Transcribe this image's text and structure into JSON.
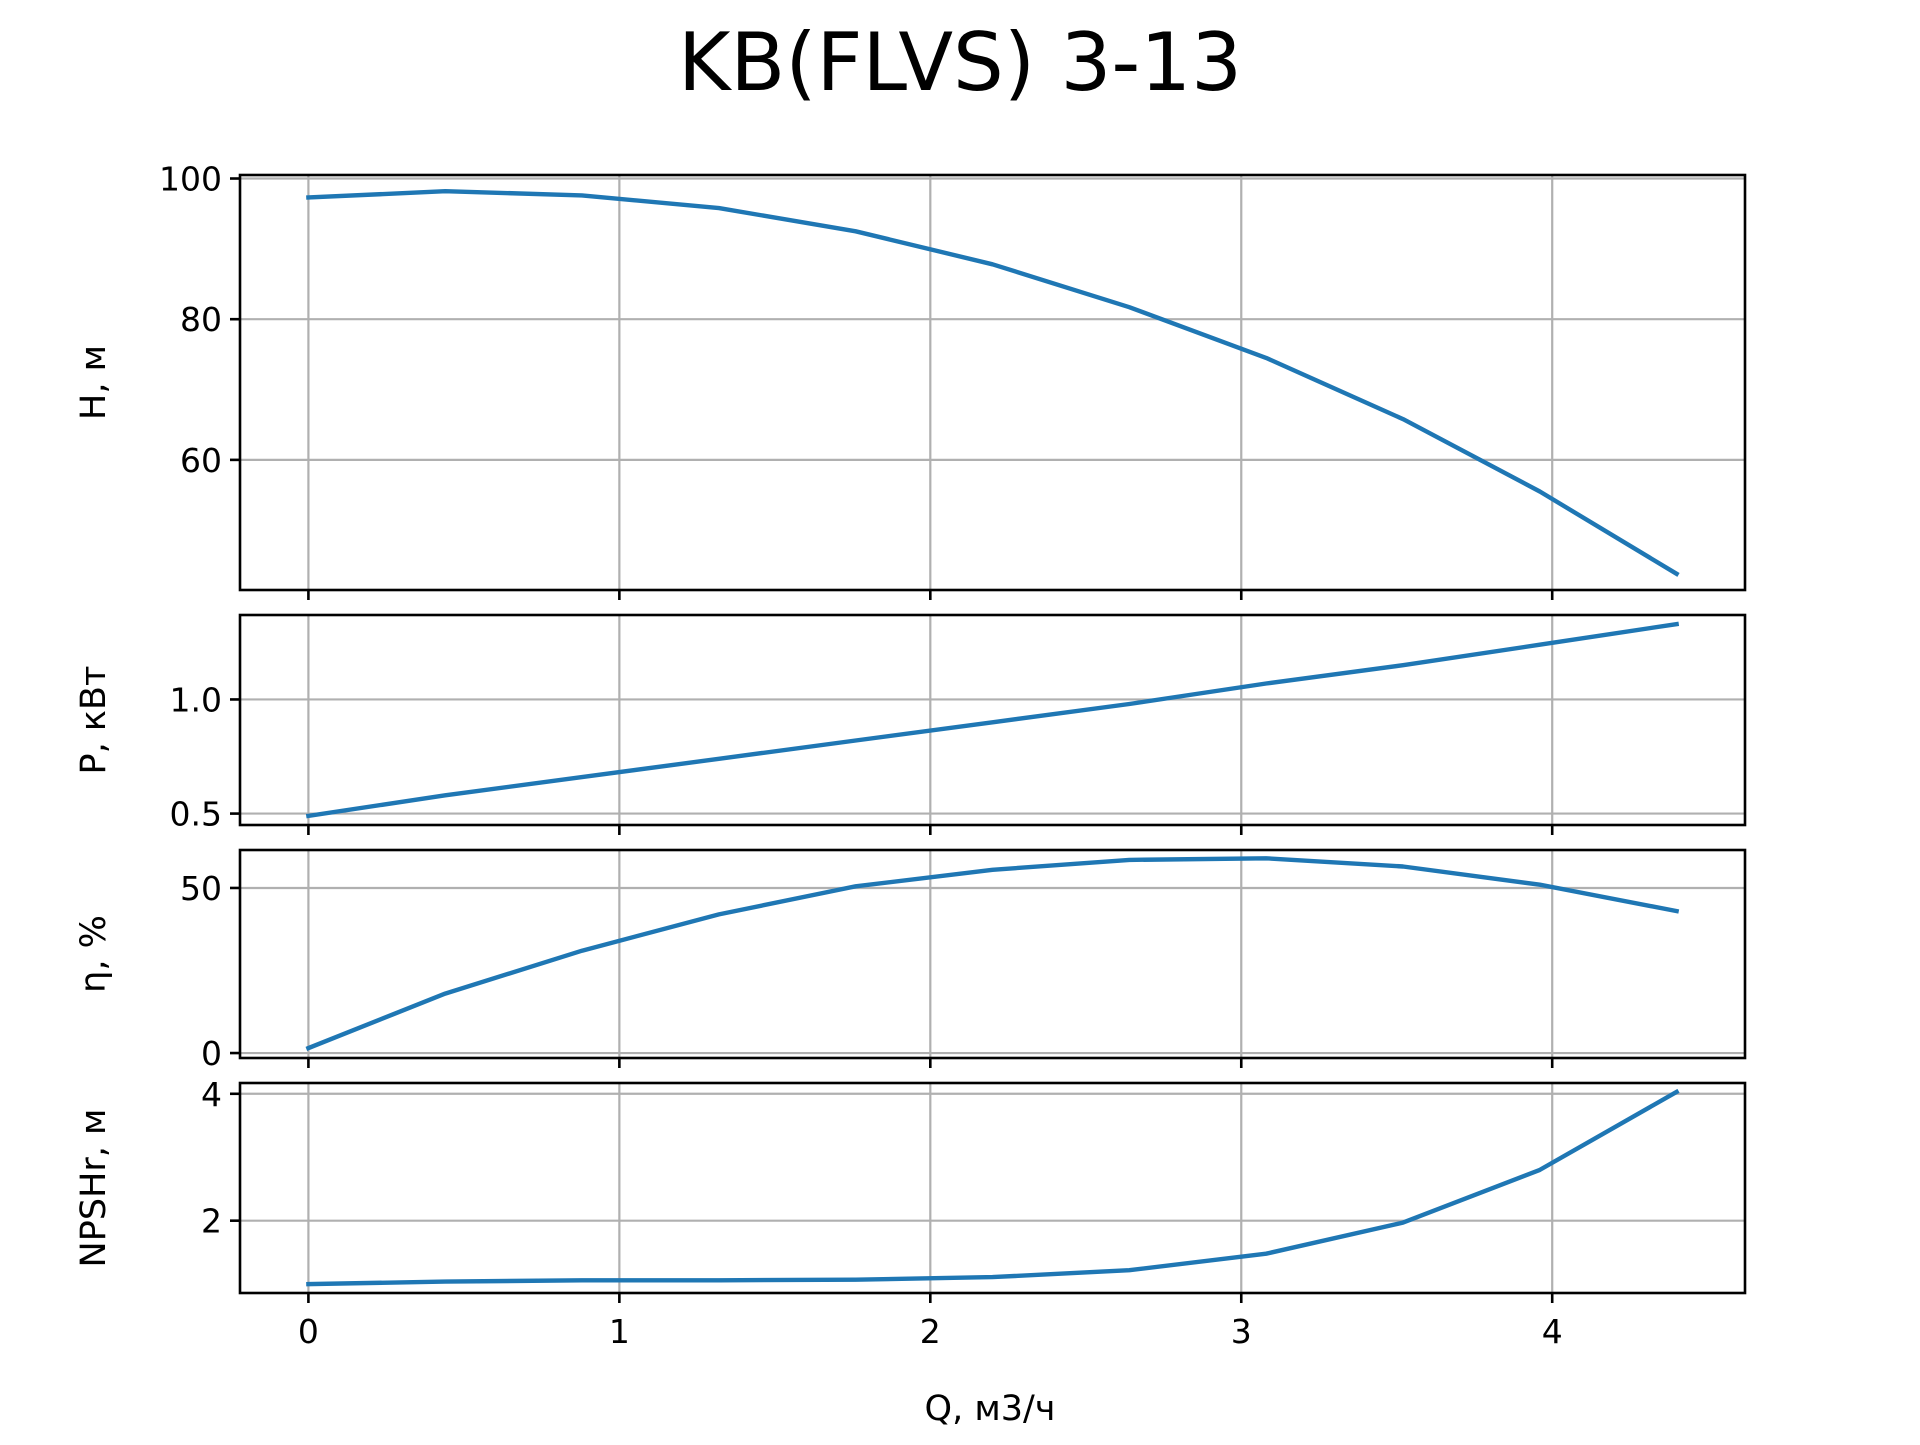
{
  "chart_data": {
    "type": "line",
    "title": "KB(FLVS) 3-13",
    "xlabel": "Q, м3/ч",
    "x_ticks": [
      0,
      1,
      2,
      3,
      4
    ],
    "x_tick_labels": [
      "0",
      "1",
      "2",
      "3",
      "4"
    ],
    "xlim": [
      -0.22,
      4.62
    ],
    "grid": true,
    "line_color": "#1f77b4",
    "x": [
      0,
      0.44,
      0.88,
      1.32,
      1.76,
      2.2,
      2.64,
      3.08,
      3.52,
      3.96,
      4.4
    ],
    "subplots": [
      {
        "ylabel": "H, м",
        "ylim": [
          41.5,
          100.5
        ],
        "y_ticks": [
          60,
          80,
          100
        ],
        "y_tick_labels": [
          "60",
          "80",
          "100"
        ],
        "values": [
          97.3,
          98.2,
          97.6,
          95.8,
          92.5,
          87.8,
          81.7,
          74.5,
          65.8,
          55.5,
          43.8
        ]
      },
      {
        "ylabel": "P, кВт",
        "ylim": [
          0.45,
          1.37
        ],
        "y_ticks": [
          0.5,
          1.0
        ],
        "y_tick_labels": [
          "0.5",
          "1.0"
        ],
        "values": [
          0.49,
          0.58,
          0.66,
          0.74,
          0.82,
          0.9,
          0.98,
          1.07,
          1.15,
          1.24,
          1.33
        ]
      },
      {
        "ylabel": "η, %",
        "ylim": [
          -1.5,
          61.5
        ],
        "y_ticks": [
          0,
          50
        ],
        "y_tick_labels": [
          "0",
          "50"
        ],
        "values": [
          1.5,
          18.0,
          31.0,
          42.0,
          50.5,
          55.5,
          58.5,
          59.0,
          56.5,
          51.0,
          43.0
        ]
      },
      {
        "ylabel": "NPSHr, м",
        "ylim": [
          0.86,
          4.17
        ],
        "y_ticks": [
          2,
          4
        ],
        "y_tick_labels": [
          "2",
          "4"
        ],
        "values": [
          1.0,
          1.04,
          1.06,
          1.06,
          1.07,
          1.11,
          1.22,
          1.48,
          1.97,
          2.8,
          4.03
        ]
      }
    ]
  }
}
